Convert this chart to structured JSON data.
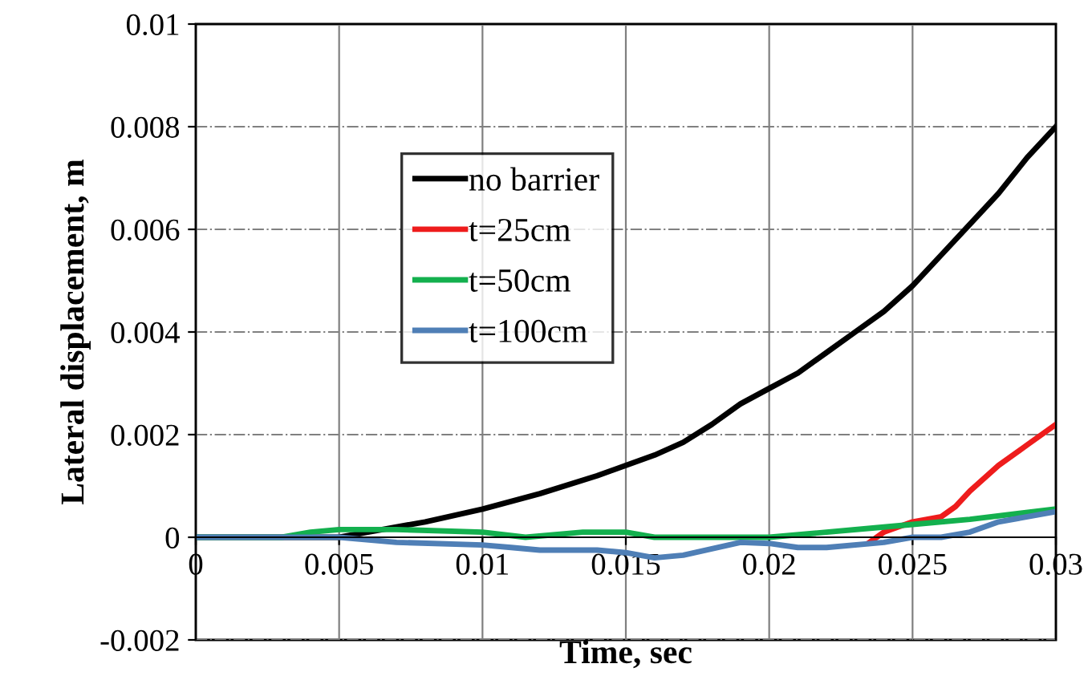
{
  "chart_data": {
    "type": "line",
    "xlabel": "Time, sec",
    "ylabel": "Lateral displacement, m",
    "xlim": [
      0,
      0.03
    ],
    "ylim": [
      -0.002,
      0.01
    ],
    "xticks": [
      0,
      0.005,
      0.01,
      0.015,
      0.02,
      0.025,
      0.03
    ],
    "yticks": [
      -0.002,
      0,
      0.002,
      0.004,
      0.006,
      0.008,
      0.01
    ],
    "grid": true,
    "legend": "left",
    "marker": "none",
    "line_style": "solid",
    "series": [
      {
        "name": "no barrier",
        "color": "#000000",
        "x": [
          0,
          0.003,
          0.005,
          0.006,
          0.008,
          0.01,
          0.012,
          0.014,
          0.016,
          0.017,
          0.018,
          0.019,
          0.02,
          0.021,
          0.022,
          0.023,
          0.024,
          0.025,
          0.026,
          0.027,
          0.028,
          0.029,
          0.03
        ],
        "values": [
          0,
          0,
          0,
          0.0001,
          0.0003,
          0.00055,
          0.00085,
          0.0012,
          0.0016,
          0.00185,
          0.0022,
          0.0026,
          0.0029,
          0.0032,
          0.0036,
          0.004,
          0.0044,
          0.0049,
          0.0055,
          0.0061,
          0.0067,
          0.0074,
          0.008
        ]
      },
      {
        "name": "t=25cm",
        "color": "#ee1c1c",
        "x": [
          0.0235,
          0.024,
          0.025,
          0.026,
          0.0265,
          0.027,
          0.028,
          0.029,
          0.03
        ],
        "values": [
          -0.0001,
          0.0001,
          0.0003,
          0.0004,
          0.0006,
          0.0009,
          0.0014,
          0.0018,
          0.0022
        ]
      },
      {
        "name": "t=50cm",
        "color": "#13b04e",
        "x": [
          0,
          0.003,
          0.004,
          0.005,
          0.007,
          0.01,
          0.0115,
          0.0135,
          0.015,
          0.016,
          0.02,
          0.022,
          0.024,
          0.025,
          0.027,
          0.03
        ],
        "values": [
          0,
          0,
          0.0001,
          0.00015,
          0.00015,
          0.0001,
          0,
          0.0001,
          0.0001,
          0,
          0,
          0.0001,
          0.0002,
          0.00025,
          0.00035,
          0.00055
        ]
      },
      {
        "name": "t=100cm",
        "color": "#4f7fb6",
        "x": [
          0,
          0.004,
          0.005,
          0.007,
          0.01,
          0.011,
          0.012,
          0.014,
          0.015,
          0.016,
          0.017,
          0.019,
          0.02,
          0.021,
          0.022,
          0.024,
          0.025,
          0.026,
          0.027,
          0.028,
          0.03
        ],
        "values": [
          0,
          0,
          0,
          -0.0001,
          -0.00015,
          -0.0002,
          -0.00025,
          -0.00025,
          -0.0003,
          -0.0004,
          -0.00035,
          -0.0001,
          -0.00012,
          -0.0002,
          -0.0002,
          -0.0001,
          0,
          0,
          0.0001,
          0.0003,
          0.0005
        ]
      }
    ]
  }
}
